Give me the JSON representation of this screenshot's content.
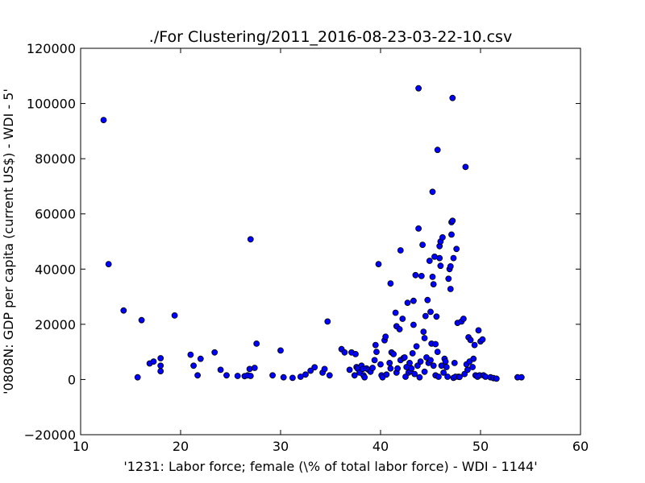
{
  "chart_data": {
    "type": "scatter",
    "title": "./For Clustering/2011_2016-08-23-03-22-10.csv",
    "xlabel": "'1231: Labor force; female  (\\% of total labor force) - WDI - 1144'",
    "ylabel": "'0808N: GDP per capita  (current US$) - WDI - 5'",
    "xlim": [
      10,
      60
    ],
    "ylim": [
      -20000,
      120000
    ],
    "xticks": [
      10,
      20,
      30,
      40,
      50,
      60
    ],
    "yticks": [
      -20000,
      0,
      20000,
      40000,
      60000,
      80000,
      100000,
      120000
    ],
    "grid": false,
    "marker_color": "#0000ff",
    "points": [
      [
        12.3,
        94000
      ],
      [
        12.8,
        41800
      ],
      [
        14.3,
        25000
      ],
      [
        15.7,
        800
      ],
      [
        16.1,
        21500
      ],
      [
        16.9,
        5800
      ],
      [
        17.3,
        6500
      ],
      [
        18.0,
        7700
      ],
      [
        18.0,
        5000
      ],
      [
        18.0,
        3000
      ],
      [
        19.4,
        23200
      ],
      [
        21.0,
        9000
      ],
      [
        21.3,
        5000
      ],
      [
        21.7,
        1500
      ],
      [
        22.0,
        7500
      ],
      [
        23.4,
        9800
      ],
      [
        24.0,
        3500
      ],
      [
        24.6,
        1500
      ],
      [
        25.7,
        1300
      ],
      [
        26.4,
        1200
      ],
      [
        26.7,
        1500
      ],
      [
        26.9,
        3800
      ],
      [
        27.0,
        1300
      ],
      [
        27.0,
        50800
      ],
      [
        27.4,
        4200
      ],
      [
        27.6,
        13000
      ],
      [
        29.2,
        1500
      ],
      [
        30.0,
        10500
      ],
      [
        30.3,
        800
      ],
      [
        31.2,
        600
      ],
      [
        32.0,
        1000
      ],
      [
        32.5,
        1800
      ],
      [
        33.0,
        3200
      ],
      [
        33.4,
        4400
      ],
      [
        34.2,
        2500
      ],
      [
        34.4,
        3800
      ],
      [
        34.7,
        21000
      ],
      [
        34.9,
        1500
      ],
      [
        36.1,
        11000
      ],
      [
        36.4,
        9800
      ],
      [
        36.9,
        3500
      ],
      [
        37.1,
        9800
      ],
      [
        37.4,
        1500
      ],
      [
        37.5,
        9200
      ],
      [
        37.6,
        4500
      ],
      [
        37.7,
        4000
      ],
      [
        37.9,
        2500
      ],
      [
        38.1,
        5000
      ],
      [
        38.2,
        3800
      ],
      [
        38.3,
        1500
      ],
      [
        38.4,
        800
      ],
      [
        38.6,
        4000
      ],
      [
        38.8,
        3500
      ],
      [
        39.0,
        2800
      ],
      [
        39.2,
        4200
      ],
      [
        39.4,
        7000
      ],
      [
        39.5,
        12500
      ],
      [
        39.6,
        10000
      ],
      [
        39.8,
        41800
      ],
      [
        40.0,
        5500
      ],
      [
        40.1,
        1500
      ],
      [
        40.2,
        800
      ],
      [
        40.4,
        14200
      ],
      [
        40.5,
        15500
      ],
      [
        40.6,
        1800
      ],
      [
        40.9,
        6000
      ],
      [
        41.0,
        4000
      ],
      [
        41.0,
        34800
      ],
      [
        41.1,
        9800
      ],
      [
        41.3,
        9200
      ],
      [
        41.5,
        24200
      ],
      [
        41.6,
        2500
      ],
      [
        41.6,
        19300
      ],
      [
        41.7,
        4000
      ],
      [
        41.9,
        18200
      ],
      [
        42.0,
        46800
      ],
      [
        42.0,
        7000
      ],
      [
        42.2,
        22000
      ],
      [
        42.3,
        7800
      ],
      [
        42.4,
        8000
      ],
      [
        42.5,
        1000
      ],
      [
        42.6,
        4500
      ],
      [
        42.7,
        27800
      ],
      [
        42.8,
        2500
      ],
      [
        42.9,
        6000
      ],
      [
        43.0,
        3000
      ],
      [
        43.1,
        4000
      ],
      [
        43.2,
        9500
      ],
      [
        43.3,
        19800
      ],
      [
        43.3,
        28500
      ],
      [
        43.4,
        2000
      ],
      [
        43.5,
        37800
      ],
      [
        43.6,
        12000
      ],
      [
        43.7,
        5000
      ],
      [
        43.8,
        105500
      ],
      [
        43.8,
        54700
      ],
      [
        43.9,
        800
      ],
      [
        44.0,
        6500
      ],
      [
        44.1,
        37500
      ],
      [
        44.2,
        48800
      ],
      [
        44.3,
        17300
      ],
      [
        44.4,
        15000
      ],
      [
        44.4,
        2800
      ],
      [
        44.5,
        23000
      ],
      [
        44.6,
        8000
      ],
      [
        44.7,
        28800
      ],
      [
        44.8,
        6000
      ],
      [
        44.9,
        43000
      ],
      [
        45.0,
        24500
      ],
      [
        45.0,
        7000
      ],
      [
        45.1,
        13000
      ],
      [
        45.2,
        37200
      ],
      [
        45.2,
        68000
      ],
      [
        45.3,
        34500
      ],
      [
        45.3,
        5000
      ],
      [
        45.4,
        44500
      ],
      [
        45.5,
        1500
      ],
      [
        45.5,
        12800
      ],
      [
        45.6,
        22800
      ],
      [
        45.7,
        83200
      ],
      [
        45.7,
        10000
      ],
      [
        45.8,
        1000
      ],
      [
        45.9,
        44000
      ],
      [
        45.9,
        48300
      ],
      [
        46.0,
        50000
      ],
      [
        46.0,
        41200
      ],
      [
        46.1,
        5000
      ],
      [
        46.2,
        51500
      ],
      [
        46.3,
        2500
      ],
      [
        46.4,
        7500
      ],
      [
        46.5,
        6500
      ],
      [
        46.6,
        4500
      ],
      [
        46.7,
        1000
      ],
      [
        46.8,
        36500
      ],
      [
        46.9,
        40000
      ],
      [
        47.0,
        41000
      ],
      [
        47.0,
        32800
      ],
      [
        47.1,
        52500
      ],
      [
        47.1,
        57000
      ],
      [
        47.2,
        57500
      ],
      [
        47.2,
        102000
      ],
      [
        47.3,
        600
      ],
      [
        47.3,
        44000
      ],
      [
        47.4,
        6000
      ],
      [
        47.5,
        1000
      ],
      [
        47.6,
        47300
      ],
      [
        47.7,
        20500
      ],
      [
        47.8,
        1000
      ],
      [
        47.9,
        900
      ],
      [
        48.1,
        21000
      ],
      [
        48.3,
        22000
      ],
      [
        48.4,
        2000
      ],
      [
        48.5,
        77000
      ],
      [
        48.6,
        5500
      ],
      [
        48.7,
        3500
      ],
      [
        48.8,
        15300
      ],
      [
        48.9,
        6500
      ],
      [
        49.0,
        14300
      ],
      [
        49.2,
        4500
      ],
      [
        49.3,
        7500
      ],
      [
        49.4,
        12500
      ],
      [
        49.5,
        1500
      ],
      [
        49.7,
        1000
      ],
      [
        49.8,
        17800
      ],
      [
        49.9,
        1500
      ],
      [
        50.0,
        13800
      ],
      [
        50.2,
        14500
      ],
      [
        50.3,
        1500
      ],
      [
        50.5,
        1000
      ],
      [
        51.0,
        800
      ],
      [
        51.3,
        500
      ],
      [
        51.6,
        300
      ],
      [
        53.7,
        800
      ],
      [
        54.1,
        800
      ]
    ]
  }
}
